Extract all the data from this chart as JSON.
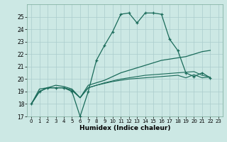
{
  "xlabel": "Humidex (Indice chaleur)",
  "background_color": "#cce8e4",
  "grid_color": "#aacccc",
  "line_color": "#1a6b5a",
  "xlim": [
    -0.5,
    23.5
  ],
  "ylim": [
    17,
    26
  ],
  "yticks": [
    17,
    18,
    19,
    20,
    21,
    22,
    23,
    24,
    25
  ],
  "xticks": [
    0,
    1,
    2,
    3,
    4,
    5,
    6,
    7,
    8,
    9,
    10,
    11,
    12,
    13,
    14,
    15,
    16,
    17,
    18,
    19,
    20,
    21,
    22,
    23
  ],
  "series": [
    [
      18.0,
      19.0,
      19.3,
      19.3,
      19.3,
      19.0,
      17.0,
      19.0,
      21.5,
      22.7,
      23.8,
      25.2,
      25.3,
      24.5,
      25.3,
      25.3,
      25.2,
      23.2,
      22.3,
      20.5,
      20.2,
      20.5,
      20.1
    ],
    [
      18.0,
      19.2,
      19.3,
      19.5,
      19.4,
      19.2,
      18.5,
      19.5,
      19.7,
      19.9,
      20.2,
      20.5,
      20.7,
      20.9,
      21.1,
      21.3,
      21.5,
      21.6,
      21.7,
      21.8,
      22.0,
      22.2,
      22.3
    ],
    [
      18.0,
      19.0,
      19.3,
      19.3,
      19.3,
      19.1,
      18.5,
      19.3,
      19.5,
      19.7,
      19.85,
      20.0,
      20.1,
      20.2,
      20.3,
      20.35,
      20.4,
      20.45,
      20.5,
      20.55,
      20.6,
      20.3,
      20.15
    ],
    [
      18.0,
      19.0,
      19.3,
      19.3,
      19.3,
      19.1,
      18.5,
      19.3,
      19.5,
      19.65,
      19.8,
      19.9,
      20.0,
      20.05,
      20.1,
      20.15,
      20.2,
      20.25,
      20.3,
      20.1,
      20.35,
      20.1,
      20.15
    ]
  ]
}
